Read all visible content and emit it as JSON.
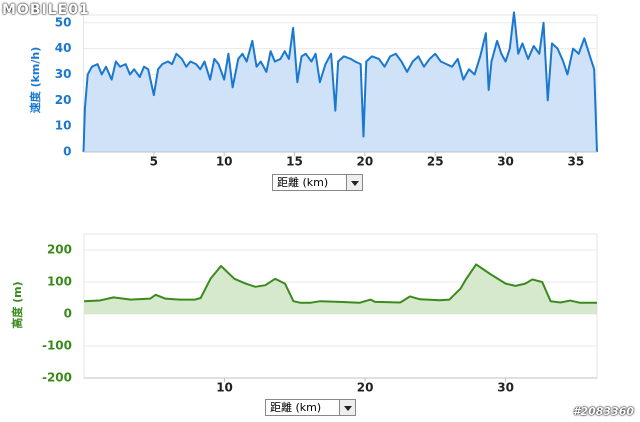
{
  "logo": "MOBILE01",
  "post_id": "#2083360",
  "chart_data": [
    {
      "type": "area",
      "ylabel": "速度 (km/h)",
      "xlabel": "距離 (km)",
      "color": "#1a78d0",
      "fill": "#cfe2f8",
      "grid": true,
      "xlim": [
        0,
        36.5
      ],
      "xticks": [
        5,
        10,
        15,
        20,
        25,
        30,
        35
      ],
      "ylim": [
        0,
        53
      ],
      "yticks": [
        0,
        10,
        20,
        30,
        40,
        50
      ],
      "x": [
        0,
        0.1,
        0.3,
        0.6,
        1.0,
        1.3,
        1.6,
        2.0,
        2.3,
        2.6,
        3.0,
        3.3,
        3.6,
        4.0,
        4.3,
        4.6,
        5.0,
        5.3,
        5.6,
        6.0,
        6.3,
        6.6,
        7.0,
        7.3,
        7.6,
        8.0,
        8.3,
        8.6,
        9.0,
        9.3,
        9.6,
        10.0,
        10.3,
        10.6,
        11.0,
        11.3,
        11.6,
        12.0,
        12.3,
        12.6,
        13.0,
        13.3,
        13.6,
        14.0,
        14.3,
        14.6,
        14.9,
        15.2,
        15.5,
        15.8,
        16.2,
        16.5,
        16.8,
        17.2,
        17.6,
        17.9,
        18.1,
        18.5,
        19.0,
        19.3,
        19.7,
        19.9,
        20.1,
        20.5,
        21.0,
        21.4,
        21.8,
        22.2,
        22.6,
        23.0,
        23.4,
        23.8,
        24.2,
        24.6,
        25.0,
        25.4,
        25.8,
        26.2,
        26.6,
        27.0,
        27.4,
        27.8,
        28.2,
        28.6,
        28.8,
        29.0,
        29.4,
        29.7,
        30.0,
        30.3,
        30.6,
        30.9,
        31.2,
        31.6,
        32.0,
        32.4,
        32.7,
        33.0,
        33.3,
        33.7,
        34.1,
        34.4,
        34.8,
        35.2,
        35.6,
        36.0,
        36.3,
        36.5
      ],
      "values": [
        0,
        17,
        30,
        33,
        34,
        30,
        33,
        28,
        35,
        33,
        34,
        30,
        32,
        29,
        33,
        32,
        22,
        32,
        34,
        35,
        34,
        38,
        36,
        33,
        35,
        34,
        32,
        35,
        28,
        36,
        34,
        28,
        38,
        25,
        36,
        38,
        35,
        43,
        33,
        35,
        31,
        39,
        35,
        36,
        39,
        36,
        48,
        27,
        37,
        38,
        35,
        38,
        27,
        34,
        38,
        16,
        35,
        37,
        36,
        35,
        34,
        6,
        35,
        37,
        36,
        33,
        37,
        38,
        35,
        31,
        35,
        37,
        33,
        36,
        38,
        35,
        34,
        33,
        36,
        28,
        32,
        30,
        37,
        46,
        24,
        35,
        43,
        38,
        35,
        40,
        54,
        38,
        42,
        36,
        41,
        38,
        50,
        20,
        42,
        40,
        35,
        30,
        40,
        38,
        44,
        37,
        32,
        0
      ]
    },
    {
      "type": "area",
      "ylabel": "高度 (m)",
      "xlabel": "距離 (km)",
      "color": "#3a8a1e",
      "fill": "#d6e9cd",
      "grid": true,
      "xlim": [
        0,
        36.5
      ],
      "xticks": [
        10,
        20,
        30
      ],
      "ylim": [
        -200,
        250
      ],
      "yticks": [
        -200,
        -100,
        0,
        100,
        200
      ],
      "x": [
        0,
        1.1,
        2.1,
        3.3,
        4.7,
        5.1,
        5.8,
        6.8,
        7.9,
        8.3,
        9.0,
        9.75,
        10.7,
        11.5,
        12.2,
        12.9,
        13.6,
        14.3,
        14.9,
        15.4,
        16.1,
        16.8,
        18.2,
        19.6,
        20.4,
        20.7,
        22.5,
        23.2,
        23.9,
        25.3,
        26.0,
        26.8,
        27.2,
        27.9,
        28.9,
        30.0,
        30.7,
        31.4,
        31.9,
        32.6,
        33.2,
        33.9,
        34.6,
        35.3,
        36.5
      ],
      "values": [
        40,
        42,
        52,
        45,
        48,
        60,
        48,
        45,
        45,
        50,
        110,
        150,
        110,
        95,
        85,
        90,
        110,
        95,
        40,
        35,
        35,
        40,
        38,
        35,
        45,
        38,
        36,
        55,
        46,
        43,
        45,
        80,
        110,
        155,
        125,
        95,
        88,
        95,
        108,
        100,
        40,
        36,
        42,
        35,
        35
      ]
    }
  ]
}
